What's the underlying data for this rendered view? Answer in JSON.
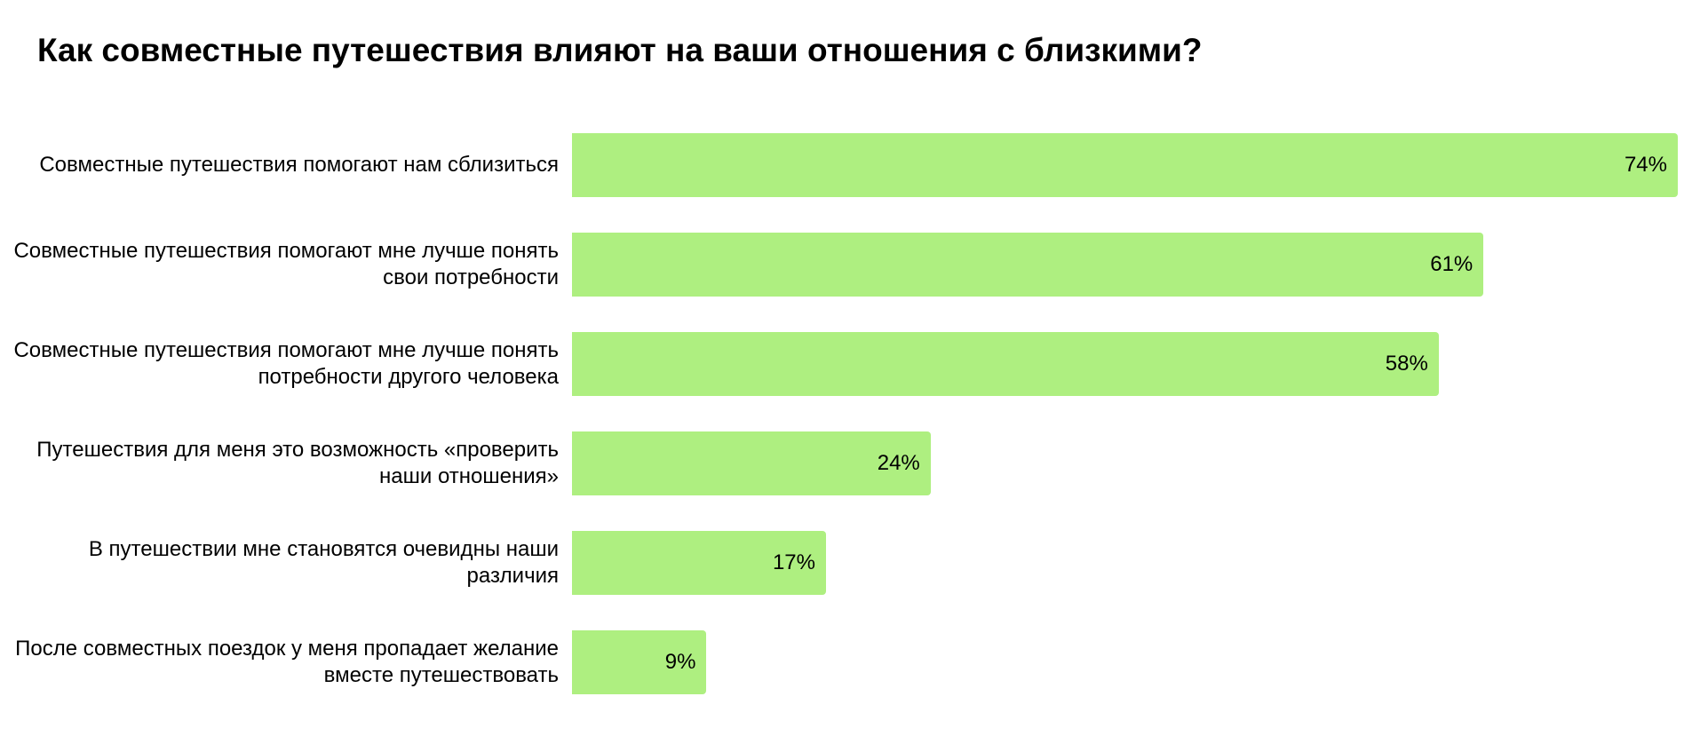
{
  "chart_data": {
    "type": "bar",
    "orientation": "horizontal",
    "title": "Как совместные путешествия влияют на ваши отношения с близкими?",
    "categories": [
      "Совместные путешествия помогают нам сблизиться",
      "Совместные путешествия помогают мне лучше понять свои потребности",
      "Совместные путешествия помогают мне лучше понять потребности другого человека",
      "Путешествия для меня это возможность «проверить наши отношения»",
      "В путешествии мне становятся очевидны наши различия",
      "После совместных поездок у меня пропадает желание вместе путешествовать"
    ],
    "values": [
      74,
      61,
      58,
      24,
      17,
      9
    ],
    "value_labels": [
      "74%",
      "61%",
      "58%",
      "24%",
      "17%",
      "9%"
    ],
    "unit": "%",
    "xlim": [
      0,
      74
    ],
    "grid": false,
    "bar_color": "#aeef80"
  }
}
